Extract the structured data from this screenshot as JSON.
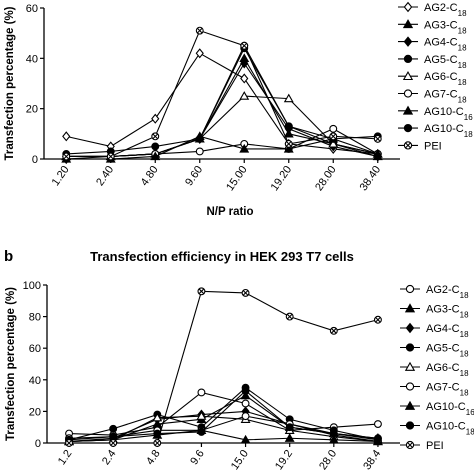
{
  "chart_data": [
    {
      "type": "line",
      "panel": "",
      "title": "",
      "xlabel": "N/P ratio",
      "ylabel": "Transfection percentage (%)",
      "categories": [
        "1.20",
        "2.40",
        "4.80",
        "9.60",
        "15.00",
        "19.20",
        "28.00",
        "38.40"
      ],
      "yticks": [
        "0",
        "20",
        "40",
        "60"
      ],
      "ylim": [
        0,
        60
      ],
      "legend_position": "right",
      "series": [
        {
          "name": "AG2-C18",
          "base": "AG2-C",
          "sub": "18",
          "marker": "diamond-open",
          "values": [
            9,
            5,
            16,
            42,
            32,
            6,
            4,
            2
          ]
        },
        {
          "name": "AG3-C18",
          "base": "AG3-C",
          "sub": "18",
          "marker": "triangle-filled",
          "values": [
            1,
            1,
            2,
            8,
            40,
            10,
            6,
            1
          ]
        },
        {
          "name": "AG4-C18",
          "base": "AG4-C",
          "sub": "18",
          "marker": "diamond-filled",
          "values": [
            0,
            1,
            2,
            8,
            38,
            12,
            5,
            1
          ]
        },
        {
          "name": "AG5-C18",
          "base": "AG5-C",
          "sub": "18",
          "marker": "circle-filled",
          "values": [
            1,
            1,
            2,
            8,
            45,
            13,
            6,
            2
          ]
        },
        {
          "name": "AG6-C18",
          "base": "AG6-C",
          "sub": "18",
          "marker": "triangle-open",
          "values": [
            1,
            1,
            2,
            8,
            25,
            24,
            6,
            2
          ]
        },
        {
          "name": "AG7-C18",
          "base": "AG7-C",
          "sub": "18",
          "marker": "circle-open",
          "values": [
            1,
            1,
            2,
            3,
            6,
            4,
            12,
            2
          ]
        },
        {
          "name": "AG10-C16",
          "base": "AG10-C",
          "sub": "16",
          "marker": "triangle-filled",
          "values": [
            0,
            0,
            1,
            9,
            4,
            4,
            8,
            2
          ]
        },
        {
          "name": "AG10-C18",
          "base": "AG10-C",
          "sub": "18",
          "marker": "circle-filled",
          "values": [
            2,
            3,
            5,
            8,
            44,
            13,
            8,
            9
          ]
        },
        {
          "name": "PEI",
          "base": "PEI",
          "sub": "",
          "marker": "circle-x",
          "values": [
            1,
            1,
            9,
            51,
            45,
            6,
            9,
            8
          ]
        }
      ]
    },
    {
      "type": "line",
      "panel": "b",
      "title": "Transfection efficiency in HEK 293 T7 cells",
      "xlabel": "",
      "ylabel": "Transfection percentage (%)",
      "categories": [
        "1.2",
        "2.4",
        "4.8",
        "9.6",
        "15.0",
        "19.2",
        "28.0",
        "38.4"
      ],
      "yticks": [
        "0",
        "20",
        "40",
        "60",
        "80",
        "100"
      ],
      "ylim": [
        0,
        100
      ],
      "legend_position": "right",
      "series": [
        {
          "name": "AG2-C18",
          "base": "AG2-C",
          "sub": "18",
          "marker": "circle-open",
          "values": [
            6,
            5,
            10,
            32,
            25,
            8,
            10,
            12
          ]
        },
        {
          "name": "AG3-C18",
          "base": "AG3-C",
          "sub": "18",
          "marker": "triangle-filled",
          "values": [
            1,
            2,
            12,
            15,
            30,
            10,
            6,
            2
          ]
        },
        {
          "name": "AG4-C18",
          "base": "AG4-C",
          "sub": "18",
          "marker": "diamond-filled",
          "values": [
            1,
            3,
            15,
            18,
            20,
            12,
            6,
            3
          ]
        },
        {
          "name": "AG5-C18",
          "base": "AG5-C",
          "sub": "18",
          "marker": "circle-filled",
          "values": [
            2,
            9,
            18,
            10,
            35,
            15,
            8,
            2
          ]
        },
        {
          "name": "AG6-C18",
          "base": "AG6-C",
          "sub": "18",
          "marker": "triangle-open",
          "values": [
            1,
            2,
            16,
            17,
            15,
            8,
            4,
            1
          ]
        },
        {
          "name": "AG7-C18",
          "base": "AG7-C",
          "sub": "18",
          "marker": "circle-open",
          "values": [
            3,
            4,
            8,
            8,
            17,
            12,
            5,
            1
          ]
        },
        {
          "name": "AG10-C16",
          "base": "AG10-C",
          "sub": "16",
          "marker": "triangle-filled",
          "values": [
            1,
            2,
            5,
            8,
            2,
            3,
            2,
            1
          ]
        },
        {
          "name": "AG10-C18",
          "base": "AG10-C",
          "sub": "18",
          "marker": "circle-filled",
          "values": [
            2,
            4,
            6,
            7,
            33,
            10,
            6,
            3
          ]
        },
        {
          "name": "PEI",
          "base": "PEI",
          "sub": "",
          "marker": "circle-x",
          "values": [
            0,
            0,
            0,
            96,
            95,
            80,
            71,
            78
          ]
        }
      ]
    }
  ]
}
